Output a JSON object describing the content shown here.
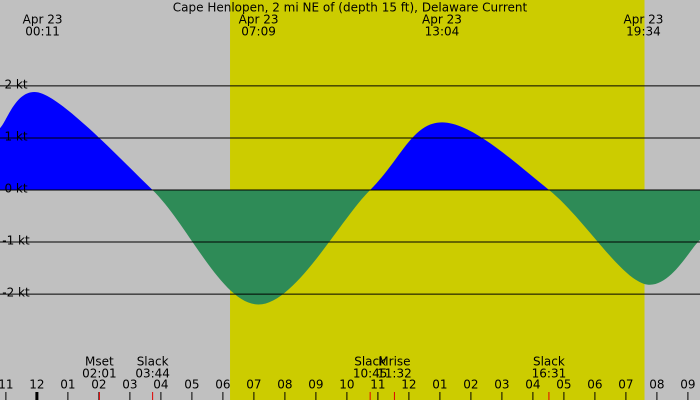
{
  "chart_data": {
    "type": "area",
    "title": "Cape Henlopen, 2 mi NE of (depth 15 ft), Delaware Current",
    "x": [
      -1.19,
      0.18,
      3.73,
      7.15,
      10.75,
      13.07,
      16.52,
      19.57,
      21.39
    ],
    "values": [
      1.19,
      1.85,
      0,
      -2.2,
      0,
      1.3,
      0,
      -1.8,
      -0.96
    ],
    "flood_color": "#0000ff",
    "ebb_color": "#2e8b57",
    "background_color": "#c0c0c0",
    "daylight_color": "#cccc00",
    "daylight": [
      6.23,
      19.6
    ],
    "xlim": [
      -1.19,
      21.39
    ],
    "ylim": [
      -3.65,
      3.65
    ],
    "xticks": [
      {
        "value": -1,
        "label": "11"
      },
      {
        "value": 0,
        "label": "12"
      },
      {
        "value": 1,
        "label": "01"
      },
      {
        "value": 2,
        "label": "02"
      },
      {
        "value": 3,
        "label": "03"
      },
      {
        "value": 4,
        "label": "04"
      },
      {
        "value": 5,
        "label": "05"
      },
      {
        "value": 6,
        "label": "06"
      },
      {
        "value": 7,
        "label": "07"
      },
      {
        "value": 8,
        "label": "08"
      },
      {
        "value": 9,
        "label": "09"
      },
      {
        "value": 10,
        "label": "10"
      },
      {
        "value": 11,
        "label": "11"
      },
      {
        "value": 12,
        "label": "12"
      },
      {
        "value": 13,
        "label": "01"
      },
      {
        "value": 14,
        "label": "02"
      },
      {
        "value": 15,
        "label": "03"
      },
      {
        "value": 16,
        "label": "04"
      },
      {
        "value": 17,
        "label": "05"
      },
      {
        "value": 18,
        "label": "06"
      },
      {
        "value": 19,
        "label": "07"
      },
      {
        "value": 20,
        "label": "08"
      },
      {
        "value": 21,
        "label": "09"
      }
    ],
    "yticks": [
      {
        "value": 2,
        "label": "2 kt"
      },
      {
        "value": 1,
        "label": "1 kt"
      },
      {
        "value": 0,
        "label": "0 kt"
      },
      {
        "value": -1,
        "label": "-1 kt"
      },
      {
        "value": -2,
        "label": "-2 kt"
      }
    ],
    "top_events": [
      {
        "date": "Apr 23",
        "time": "00:11"
      },
      {
        "date": "Apr 23",
        "time": "07:09"
      },
      {
        "date": "Apr 23",
        "time": "13:04"
      },
      {
        "date": "Apr 23",
        "time": "19:34"
      }
    ],
    "bottom_events": [
      {
        "label": "Mset",
        "time": "02:01"
      },
      {
        "label": "Slack",
        "time": "03:44"
      },
      {
        "label": "Slack",
        "time": "10:45"
      },
      {
        "label": "Mrise",
        "time": "11:32"
      },
      {
        "label": "Slack",
        "time": "16:31"
      }
    ]
  }
}
